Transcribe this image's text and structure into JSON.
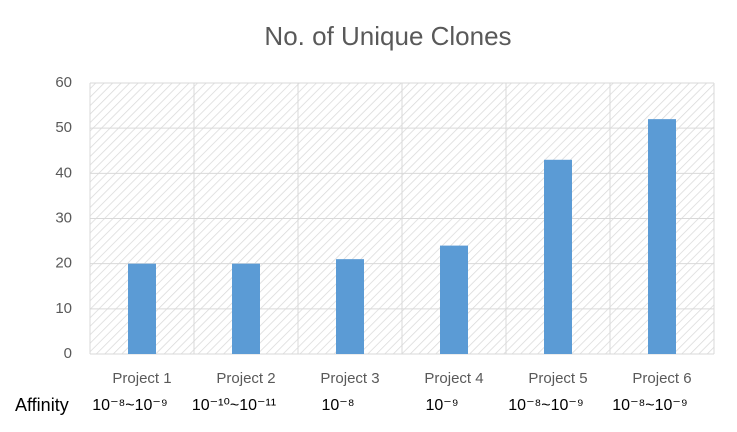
{
  "chart_data": {
    "type": "bar",
    "title": "No. of Unique Clones",
    "categories": [
      "Project 1",
      "Project 2",
      "Project 3",
      "Project 4",
      "Project 5",
      "Project 6"
    ],
    "values": [
      20,
      20,
      21,
      24,
      43,
      52
    ],
    "color": "#5b9bd5",
    "ylim": [
      0,
      60
    ],
    "yticks": [
      0,
      10,
      20,
      30,
      40,
      50,
      60
    ],
    "grid": true,
    "row_label": "Affinity",
    "row_values": [
      "10⁻⁸~10⁻⁹",
      "10⁻¹⁰~10⁻¹¹",
      "10⁻⁸",
      "10⁻⁹",
      "10⁻⁸~10⁻⁹",
      "10⁻⁸~10⁻⁹"
    ]
  }
}
